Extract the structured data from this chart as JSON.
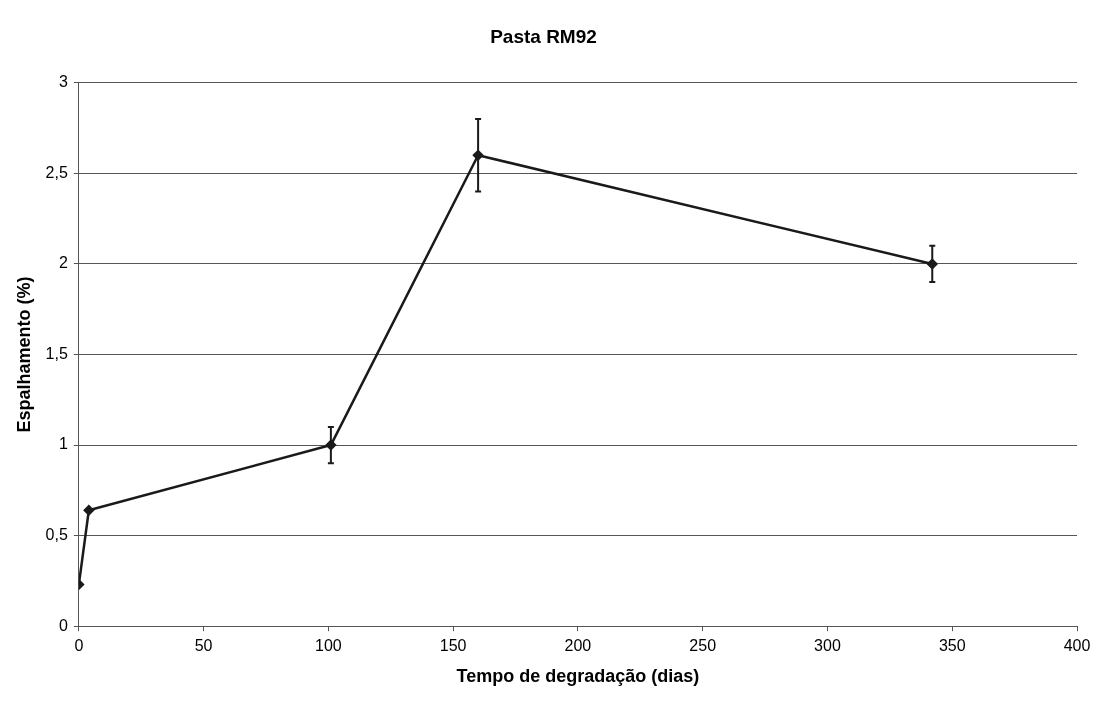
{
  "chart_data": {
    "type": "line",
    "title": "Pasta RM92",
    "xlabel": "Tempo de degradação (dias)",
    "ylabel": "Espalhamento (%)",
    "x": [
      0,
      4,
      101,
      160,
      342
    ],
    "series": [
      {
        "color": "#1a1a1a",
        "values": [
          0.23,
          0.64,
          1.0,
          2.6,
          2.0
        ],
        "errors": [
          null,
          null,
          0.1,
          0.2,
          0.1
        ]
      }
    ],
    "xlim": [
      0,
      400
    ],
    "xticks": [
      0,
      50,
      100,
      150,
      200,
      250,
      300,
      350,
      400
    ],
    "ylim": [
      0,
      3
    ],
    "yticks": [
      0,
      {
        "value": 0.5,
        "label": "0,5"
      },
      1,
      {
        "value": 1.5,
        "label": "1,5"
      },
      2,
      {
        "value": 2.5,
        "label": "2,5"
      },
      3
    ],
    "grid": "y",
    "legend": false,
    "marker": "diamond",
    "line_style": "solid"
  }
}
